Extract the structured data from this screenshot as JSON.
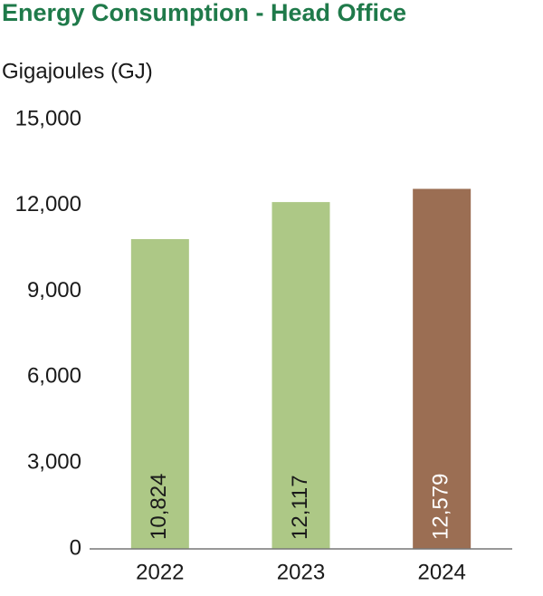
{
  "chart_data": {
    "type": "bar",
    "title": "Energy Consumption - Head Office",
    "subtitle": "Gigajoules (GJ)",
    "categories": [
      "2022",
      "2023",
      "2024"
    ],
    "values": [
      10824,
      12117,
      12579
    ],
    "value_labels": [
      "10,824",
      "12,117",
      "12,579"
    ],
    "colors": [
      "#adc886",
      "#adc886",
      "#9b6e53"
    ],
    "value_label_colors": [
      "#1a1a1a",
      "#1a1a1a",
      "#ffffff"
    ],
    "ylim": [
      0,
      15000
    ],
    "yticks": [
      0,
      {
        "value": 3000,
        "label": "3,000"
      },
      {
        "value": 6000,
        "label": "6,000"
      },
      {
        "value": 9000,
        "label": "9,000"
      },
      {
        "value": 12000,
        "label": "12,000"
      },
      {
        "value": 15000,
        "label": "15,000"
      }
    ],
    "grid": false
  }
}
